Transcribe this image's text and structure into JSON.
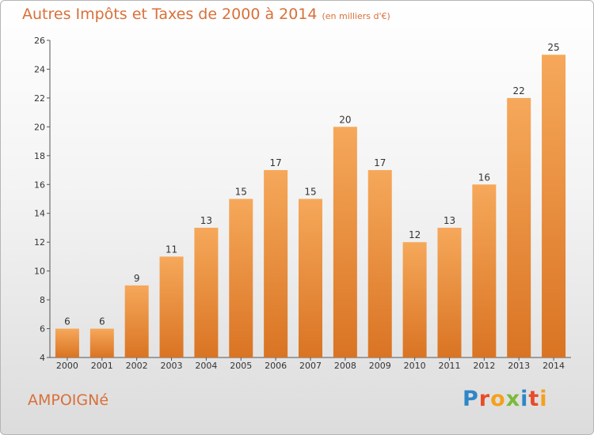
{
  "title": "Autres Impôts et Taxes de 2000 à 2014",
  "subtitle": "(en milliers d'€)",
  "commune": "AMPOIGNé",
  "brand": [
    "P",
    "r",
    "o",
    "x",
    "i",
    "t",
    "i"
  ],
  "colors": {
    "bar_light": "#f6a85a",
    "bar_dark": "#d97423",
    "accent": "#d8703a"
  },
  "chart_data": {
    "type": "bar",
    "categories": [
      "2000",
      "2001",
      "2002",
      "2003",
      "2004",
      "2005",
      "2006",
      "2007",
      "2008",
      "2009",
      "2010",
      "2011",
      "2012",
      "2013",
      "2014"
    ],
    "values": [
      6,
      6,
      9,
      11,
      13,
      15,
      17,
      15,
      20,
      17,
      12,
      13,
      16,
      22,
      25
    ],
    "ylim": [
      4,
      26
    ],
    "yticks": [
      4,
      6,
      8,
      10,
      12,
      14,
      16,
      18,
      20,
      22,
      24,
      26
    ],
    "grid": false
  }
}
